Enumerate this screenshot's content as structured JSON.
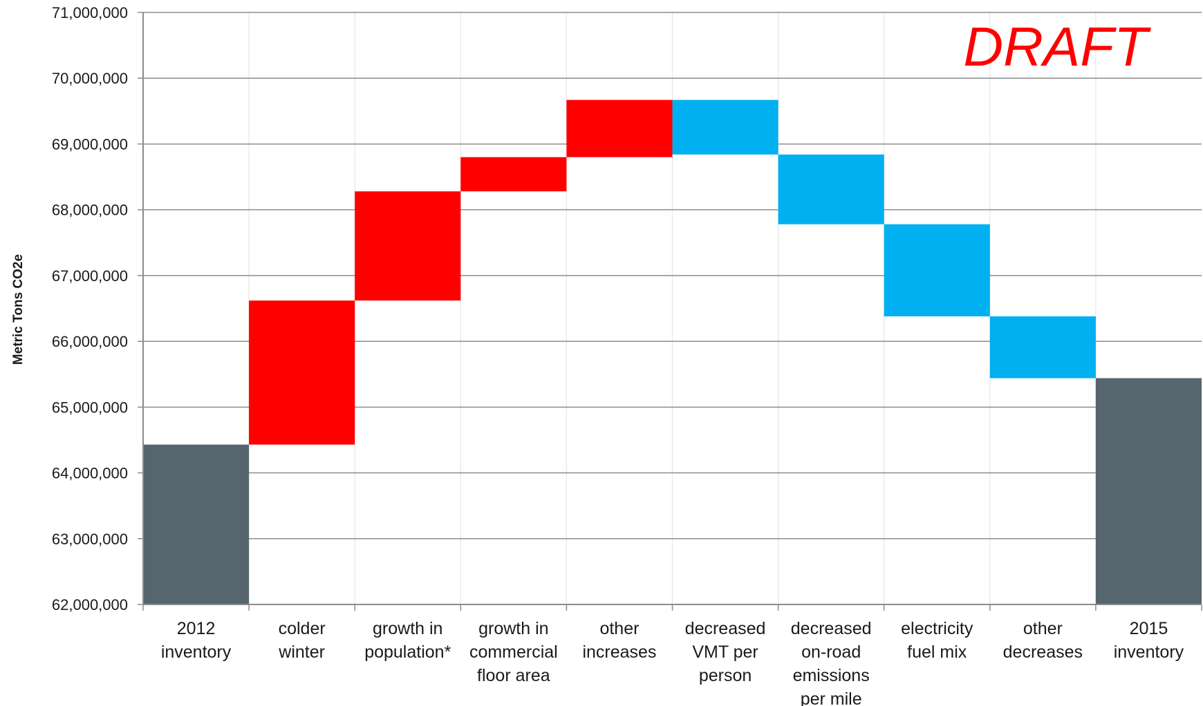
{
  "chart_data": {
    "type": "bar",
    "subtype": "waterfall",
    "annotation": "DRAFT",
    "ylabel": "Metric Tons CO2e",
    "ylim": [
      62000000,
      71000000
    ],
    "yticks": [
      62000000,
      63000000,
      64000000,
      65000000,
      66000000,
      67000000,
      68000000,
      69000000,
      70000000,
      71000000
    ],
    "ytick_labels": [
      "62,000,000",
      "63,000,000",
      "64,000,000",
      "65,000,000",
      "66,000,000",
      "67,000,000",
      "68,000,000",
      "69,000,000",
      "70,000,000",
      "71,000,000"
    ],
    "grid": "horizontal",
    "categories": [
      [
        "2012",
        "inventory"
      ],
      [
        "colder",
        "winter"
      ],
      [
        "growth in",
        "population*"
      ],
      [
        "growth in",
        "commercial",
        "floor area"
      ],
      [
        "other",
        "increases"
      ],
      [
        "decreased",
        "VMT per",
        "person"
      ],
      [
        "decreased",
        "on-road",
        "emissions",
        "per mile"
      ],
      [
        "electricity",
        "fuel mix"
      ],
      [
        "other",
        "decreases"
      ],
      [
        "2015",
        "inventory"
      ]
    ],
    "bars": [
      {
        "start": 62000000,
        "end": 64430000,
        "kind": "total"
      },
      {
        "start": 64430000,
        "end": 66620000,
        "kind": "increase"
      },
      {
        "start": 66620000,
        "end": 68280000,
        "kind": "increase"
      },
      {
        "start": 68280000,
        "end": 68800000,
        "kind": "increase"
      },
      {
        "start": 68800000,
        "end": 69670000,
        "kind": "increase"
      },
      {
        "start": 69670000,
        "end": 68840000,
        "kind": "decrease"
      },
      {
        "start": 68840000,
        "end": 67780000,
        "kind": "decrease"
      },
      {
        "start": 67780000,
        "end": 66380000,
        "kind": "decrease"
      },
      {
        "start": 66380000,
        "end": 65440000,
        "kind": "decrease"
      },
      {
        "start": 62000000,
        "end": 65440000,
        "kind": "total"
      }
    ],
    "colors": {
      "total": "#56656e",
      "increase": "#ff0000",
      "decrease": "#00b0f0",
      "grid": "#8c8c8c",
      "vgrid": "#e6e6e6",
      "axis": "#8c8c8c"
    }
  }
}
